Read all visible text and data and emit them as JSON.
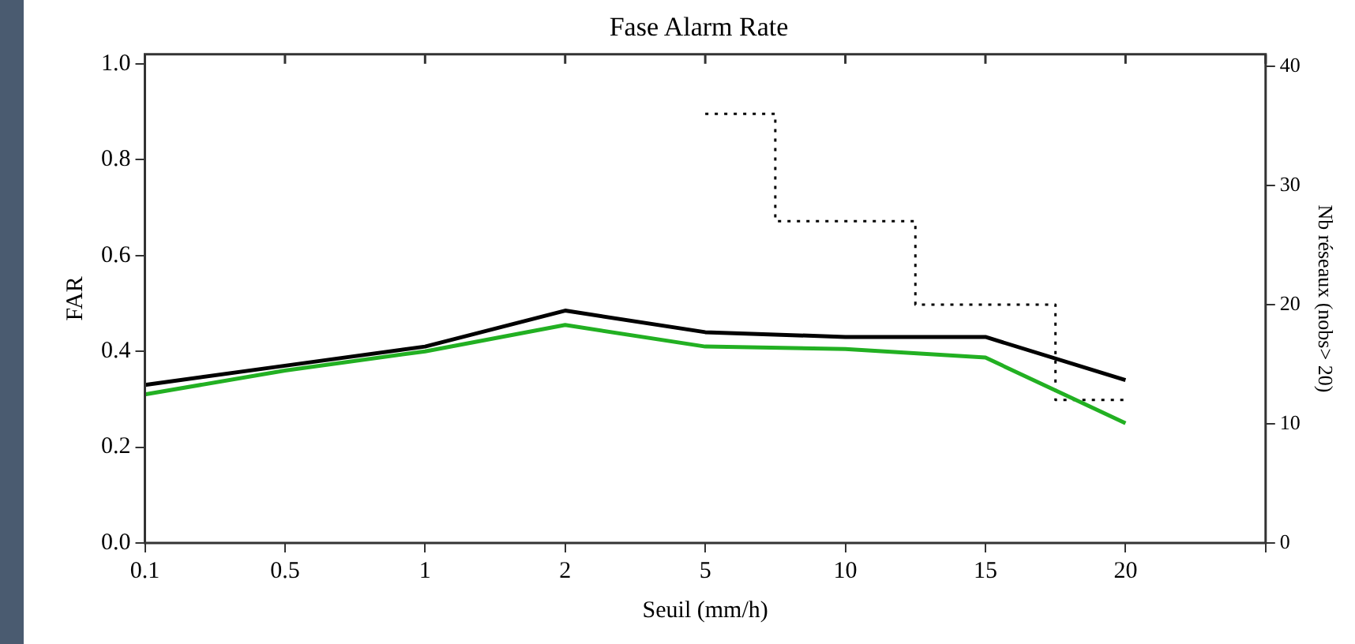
{
  "chart_data": {
    "type": "line",
    "title": "Fase Alarm Rate",
    "xlabel": "Seuil (mm/h)",
    "ylabel": "FAR",
    "y2label": "Nb réseaux (nobs> 20)",
    "categories": [
      "0.1",
      "0.5",
      "1",
      "2",
      "5",
      "10",
      "15",
      "20",
      null
    ],
    "series": [
      {
        "color": "#000000",
        "values": [
          0.33,
          0.37,
          0.41,
          0.485,
          0.44,
          0.43,
          0.43,
          0.34,
          null
        ]
      },
      {
        "color": "#22b022",
        "values": [
          0.31,
          0.36,
          0.4,
          0.455,
          0.41,
          0.405,
          0.387,
          0.25,
          null
        ]
      },
      {
        "type": "step",
        "axis": "y2",
        "color": "#000000",
        "line_style": "dotted",
        "values": [
          null,
          null,
          null,
          null,
          36,
          27,
          20,
          12,
          null
        ]
      }
    ],
    "ylim": [
      0,
      1.02
    ],
    "yticks": [
      {
        "value": 0,
        "label": "0.0"
      },
      {
        "value": 0.2,
        "label": "0.2"
      },
      {
        "value": 0.4,
        "label": "0.4"
      },
      {
        "value": 0.6,
        "label": "0.6"
      },
      {
        "value": 0.8,
        "label": "0.8"
      },
      {
        "value": 1,
        "label": "1.0"
      }
    ],
    "y2lim": [
      0,
      41
    ],
    "y2ticks": [
      0,
      10,
      20,
      30,
      40
    ],
    "grid": false,
    "legend": false,
    "marker": "none"
  }
}
